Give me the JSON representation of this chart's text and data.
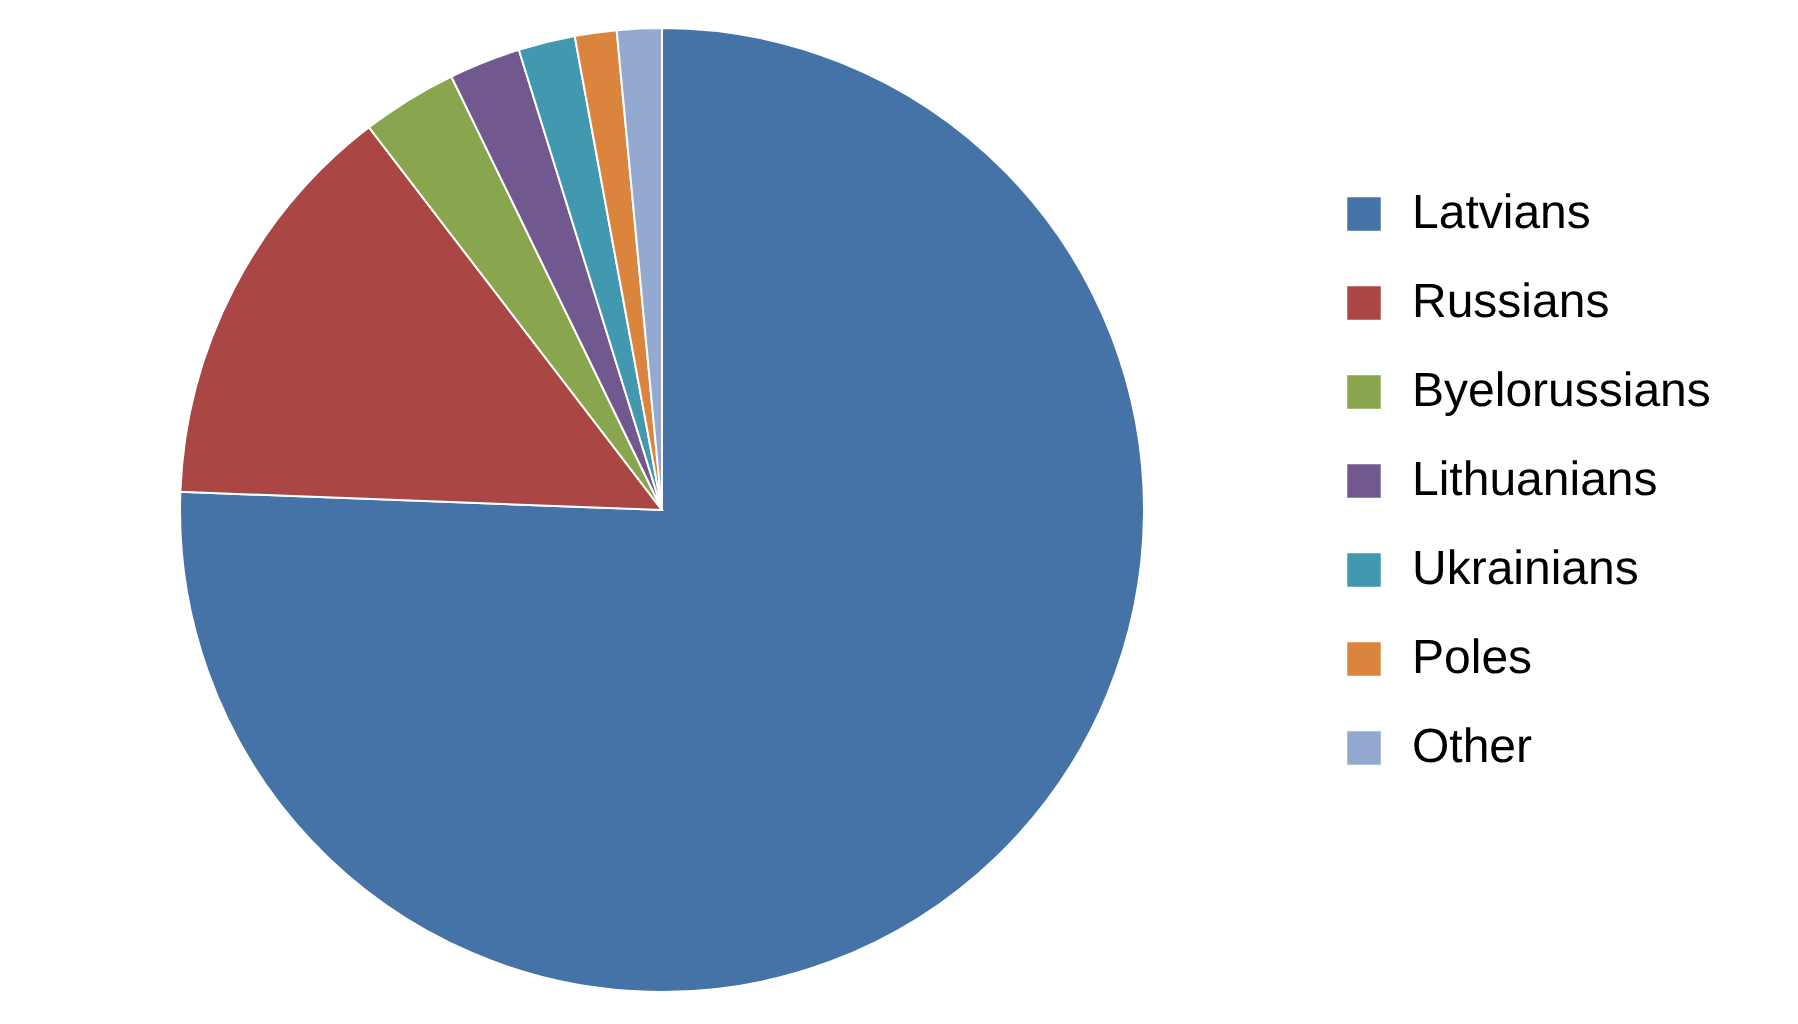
{
  "chart_data": {
    "type": "pie",
    "categories": [
      "Latvians",
      "Russians",
      "Byelorussians",
      "Lithuanians",
      "Ukrainians",
      "Poles",
      "Other"
    ],
    "values": [
      75.6,
      14.0,
      3.2,
      2.4,
      1.9,
      1.4,
      1.5
    ],
    "colors": [
      "#4572a7",
      "#aa4643",
      "#89a54e",
      "#71588f",
      "#4198af",
      "#db843d",
      "#93a9cf"
    ],
    "legend": "right"
  }
}
